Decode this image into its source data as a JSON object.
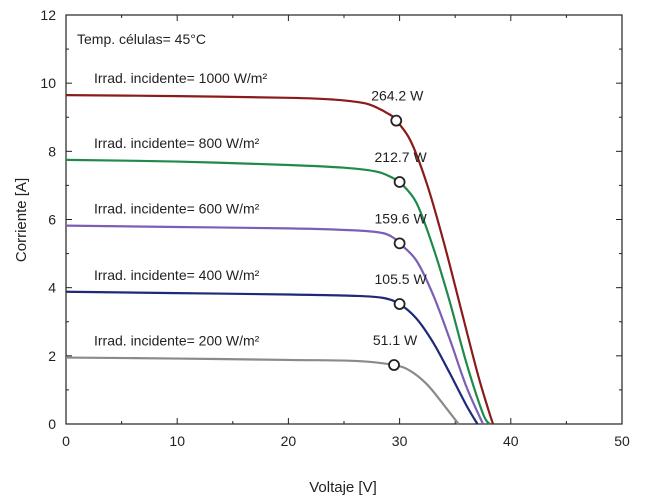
{
  "chart_data": {
    "type": "line",
    "xlabel": "Voltaje [V]",
    "ylabel": "Corriente [A]",
    "xlim": [
      0,
      50
    ],
    "ylim": [
      0,
      12
    ],
    "xticks": [
      0,
      10,
      20,
      30,
      40,
      50
    ],
    "yticks": [
      0,
      2,
      4,
      6,
      8,
      10,
      12
    ],
    "grid": false,
    "annotation": "Temp. células= 45°C",
    "series": [
      {
        "name": "Irrad. incidente= 1000 W/m²",
        "color": "#8b1a1a",
        "x": [
          0,
          10,
          20,
          24,
          27,
          29,
          29.7,
          31,
          32.5,
          34,
          35.5,
          37,
          38,
          38.4
        ],
        "y": [
          9.65,
          9.62,
          9.57,
          9.52,
          9.4,
          9.1,
          8.9,
          8.3,
          7.0,
          5.3,
          3.4,
          1.5,
          0.4,
          0
        ],
        "mpp_x": 29.7,
        "mpp_y": 8.9,
        "power_label": "264.2 W"
      },
      {
        "name": "Irrad. incidente= 800 W/m²",
        "color": "#1f8a4c",
        "x": [
          0,
          10,
          20,
          25,
          28,
          29.5,
          30,
          31.5,
          33,
          34.5,
          36,
          37.5,
          38.1
        ],
        "y": [
          7.75,
          7.7,
          7.6,
          7.52,
          7.4,
          7.2,
          7.1,
          6.5,
          5.2,
          3.6,
          1.8,
          0.3,
          0
        ],
        "mpp_x": 30.0,
        "mpp_y": 7.1,
        "power_label": "212.7 W"
      },
      {
        "name": "Irrad. incidente= 600 W/m²",
        "color": "#7b5fb5",
        "x": [
          0,
          10,
          20,
          26,
          28.5,
          29.5,
          30,
          31.5,
          33,
          34.5,
          36,
          37.5
        ],
        "y": [
          5.82,
          5.78,
          5.74,
          5.68,
          5.6,
          5.45,
          5.3,
          4.8,
          3.8,
          2.5,
          1.1,
          0
        ],
        "mpp_x": 30.0,
        "mpp_y": 5.3,
        "power_label": "159.6 W"
      },
      {
        "name": "Irrad. incidente= 400 W/m²",
        "color": "#1e2a78",
        "x": [
          0,
          10,
          20,
          26,
          28.5,
          30,
          31.5,
          33,
          34.5,
          36,
          37
        ],
        "y": [
          3.88,
          3.84,
          3.8,
          3.76,
          3.7,
          3.52,
          3.1,
          2.4,
          1.5,
          0.55,
          0
        ],
        "mpp_x": 30.0,
        "mpp_y": 3.52,
        "power_label": "105.5 W"
      },
      {
        "name": "Irrad. incidente= 200 W/m²",
        "color": "#8a8a8a",
        "x": [
          0,
          10,
          20,
          26,
          29.5,
          31,
          32.5,
          34,
          35.3
        ],
        "y": [
          1.95,
          1.92,
          1.88,
          1.85,
          1.73,
          1.55,
          1.15,
          0.55,
          0
        ],
        "mpp_x": 29.5,
        "mpp_y": 1.73,
        "power_label": "51.1 W"
      }
    ]
  }
}
